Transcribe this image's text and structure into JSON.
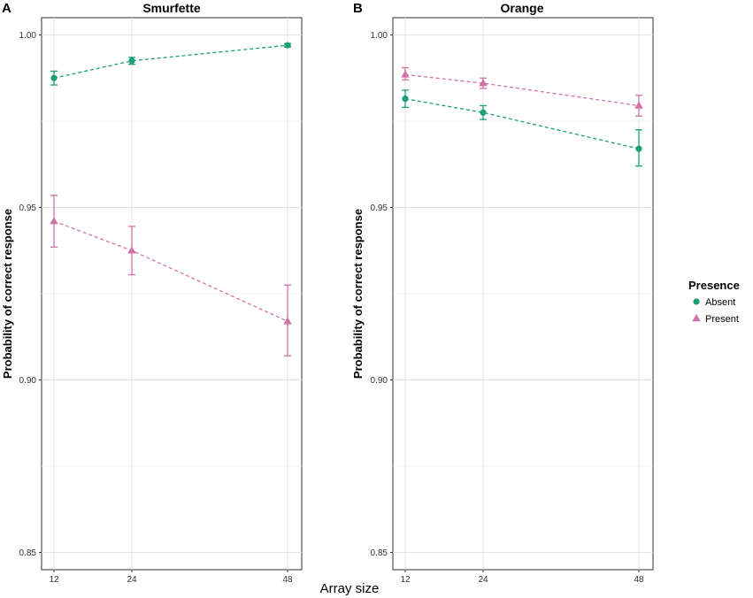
{
  "chart_data": {
    "type": "line",
    "xlabel": "Array size",
    "ylabel": "Probability of correct response",
    "x": [
      12,
      24,
      48
    ],
    "x_ticks": [
      "12",
      "24",
      "48"
    ],
    "ylim": [
      0.845,
      1.005
    ],
    "y_ticks": [
      "0.85",
      "0.90",
      "0.95",
      "1.00"
    ],
    "legend": {
      "title": "Presence",
      "position": "right",
      "entries": [
        {
          "name": "Absent",
          "color": "#1a9e77",
          "marker": "circle"
        },
        {
          "name": "Present",
          "color": "#cf72a8",
          "marker": "triangle"
        }
      ]
    },
    "panels": [
      {
        "letter": "A",
        "title": "Smurfette",
        "series": [
          {
            "name": "Absent",
            "values": [
              0.9875,
              0.9925,
              0.997
            ],
            "lower": [
              0.9855,
              0.9915,
              0.9965
            ],
            "upper": [
              0.9895,
              0.9935,
              0.9975
            ]
          },
          {
            "name": "Present",
            "values": [
              0.946,
              0.9375,
              0.917
            ],
            "lower": [
              0.9385,
              0.9305,
              0.907
            ],
            "upper": [
              0.9535,
              0.9445,
              0.9275
            ]
          }
        ]
      },
      {
        "letter": "B",
        "title": "Orange",
        "series": [
          {
            "name": "Absent",
            "values": [
              0.9815,
              0.9775,
              0.967
            ],
            "lower": [
              0.979,
              0.9755,
              0.962
            ],
            "upper": [
              0.984,
              0.9795,
              0.9725
            ]
          },
          {
            "name": "Present",
            "values": [
              0.9885,
              0.986,
              0.9795
            ],
            "lower": [
              0.987,
              0.9845,
              0.9765
            ],
            "upper": [
              0.9905,
              0.9875,
              0.9825
            ]
          }
        ]
      }
    ]
  }
}
